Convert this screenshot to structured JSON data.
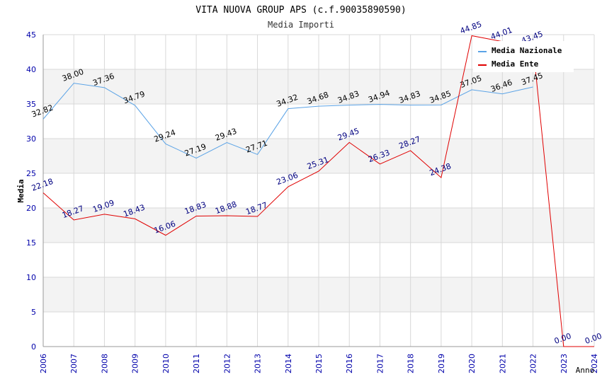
{
  "chart_data": {
    "type": "line",
    "title": "VITA NUOVA GROUP APS (c.f.90035890590)",
    "subtitle": "Media Importi",
    "xlabel": "Anno",
    "ylabel": "Media",
    "x": [
      "2006",
      "2007",
      "2008",
      "2009",
      "2010",
      "2011",
      "2012",
      "2013",
      "2014",
      "2015",
      "2016",
      "2017",
      "2018",
      "2019",
      "2020",
      "2021",
      "2022",
      "2023",
      "2024"
    ],
    "ylim": [
      0,
      45
    ],
    "yticks": [
      "0",
      "5",
      "10",
      "15",
      "20",
      "25",
      "30",
      "35",
      "40",
      "45"
    ],
    "legend_position": "top-right",
    "series": [
      {
        "name": "Media Nazionale",
        "color": "#5ba3e6",
        "label_color": "#000000",
        "values": [
          32.82,
          38.0,
          37.36,
          34.79,
          29.24,
          27.19,
          29.43,
          27.71,
          34.32,
          34.68,
          34.83,
          34.94,
          34.83,
          34.85,
          37.05,
          36.46,
          37.45,
          null,
          null
        ],
        "labels": [
          "32.82",
          "38.00",
          "37.36",
          "34.79",
          "29.24",
          "27.19",
          "29.43",
          "27.71",
          "34.32",
          "34.68",
          "34.83",
          "34.94",
          "34.83",
          "34.85",
          "37.05",
          "36.46",
          "37.45",
          "",
          ""
        ]
      },
      {
        "name": "Media Ente",
        "color": "#e00000",
        "label_color": "#000080",
        "values": [
          22.18,
          18.27,
          19.09,
          18.43,
          16.06,
          18.83,
          18.88,
          18.77,
          23.06,
          25.31,
          29.45,
          26.33,
          28.27,
          24.38,
          44.85,
          44.01,
          43.45,
          0.0,
          0.0
        ],
        "labels": [
          "22.18",
          "18.27",
          "19.09",
          "18.43",
          "16.06",
          "18.83",
          "18.88",
          "18.77",
          "23.06",
          "25.31",
          "29.45",
          "26.33",
          "28.27",
          "24.38",
          "44.85",
          "44.01",
          "43.45",
          "0.00",
          "0.00"
        ]
      }
    ],
    "colors": {
      "band_dark": "#f3f3f3",
      "band_light": "#ffffff",
      "grid": "#d8d8d8",
      "axis_text": "#0000aa",
      "title_text": "#000000",
      "subtitle_text": "#333333"
    }
  }
}
